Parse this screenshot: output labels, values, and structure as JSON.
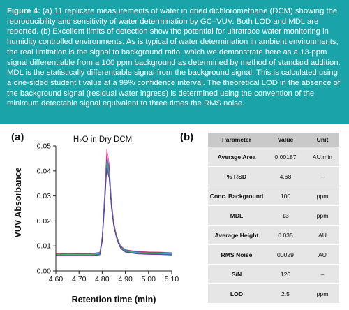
{
  "caption": {
    "label": "Figure 4:",
    "text": "(a) 11 replicate measurements of water in dried dichloromethane (DCM) showing the reproducibility and sensitivity of water determination by GC–VUV. Both LOD and MDL are reported. (b) Excellent limits of detection show the potential for ultratrace water monitoring in humidity controlled environments. As is typical of water determination in ambient environments, the real limitation is the signal to background ratio, which we demonstrate here as a 13-ppm signal differentiable from a 100 ppm background as determined by method of standard addition. MDL is the statistically differentiable signal from the background signal. This is calculated using a one-sided student t value at a 99% confidence interval. The theoretical LOD in the absence of the background signal (residual water ingress) is determined using the convention of the minimum detectable signal equivalent to three times the RMS noise."
  },
  "panel_a_label": "(a)",
  "panel_b_label": "(b)",
  "colors": {
    "caption_bg": "#1aa3a8",
    "table_header_bg": "#c9c9c9",
    "table_row_bg": "#e6e6e6",
    "series": [
      "#e0409a",
      "#c2185b",
      "#3f51b5",
      "#1e88e5",
      "#26a69a",
      "#4caf50",
      "#8bc34a",
      "#00897b",
      "#5c6bc0",
      "#0097a7",
      "#7b1fa2"
    ]
  },
  "chart_data": {
    "type": "line",
    "title": "H₂O in Dry DCM",
    "xlabel": "Retention time (min)",
    "ylabel": "VUV Absorbance",
    "xlim": [
      4.6,
      5.1
    ],
    "ylim": [
      0.0,
      0.05
    ],
    "xticks": [
      "4.60",
      "4.70",
      "4.80",
      "4.90",
      "5.00",
      "5.10"
    ],
    "yticks": [
      "0.00",
      "0.01",
      "0.02",
      "0.03",
      "0.04",
      "0.05"
    ],
    "grid": false,
    "replicates": 11,
    "x": [
      4.6,
      4.65,
      4.7,
      4.75,
      4.79,
      4.8,
      4.81,
      4.82,
      4.83,
      4.84,
      4.85,
      4.86,
      4.87,
      4.88,
      4.9,
      4.95,
      5.0,
      5.05,
      5.1
    ],
    "series": [
      {
        "values": [
          0.0071,
          0.0069,
          0.007,
          0.0069,
          0.0075,
          0.014,
          0.03,
          0.0488,
          0.043,
          0.028,
          0.0195,
          0.015,
          0.012,
          0.01,
          0.0085,
          0.0078,
          0.0076,
          0.0075,
          0.0073
        ]
      },
      {
        "values": [
          0.007,
          0.0068,
          0.0069,
          0.0068,
          0.0073,
          0.0135,
          0.029,
          0.0462,
          0.0415,
          0.0272,
          0.019,
          0.0148,
          0.0118,
          0.0098,
          0.0084,
          0.0077,
          0.0075,
          0.0074,
          0.0072
        ]
      },
      {
        "values": [
          0.0069,
          0.0067,
          0.0068,
          0.0068,
          0.0072,
          0.0132,
          0.0285,
          0.0448,
          0.0405,
          0.0268,
          0.0188,
          0.0146,
          0.0117,
          0.0097,
          0.0083,
          0.0076,
          0.0074,
          0.0073,
          0.0071
        ]
      },
      {
        "values": [
          0.0068,
          0.0067,
          0.0067,
          0.0067,
          0.0071,
          0.013,
          0.028,
          0.044,
          0.0398,
          0.0264,
          0.0186,
          0.0145,
          0.0116,
          0.0096,
          0.0082,
          0.0075,
          0.0073,
          0.0072,
          0.007
        ]
      },
      {
        "values": [
          0.0067,
          0.0066,
          0.0066,
          0.0066,
          0.007,
          0.0128,
          0.0276,
          0.0436,
          0.0394,
          0.0262,
          0.0185,
          0.0144,
          0.0115,
          0.0095,
          0.0081,
          0.0074,
          0.0072,
          0.0071,
          0.0069
        ]
      },
      {
        "values": [
          0.0066,
          0.0065,
          0.0065,
          0.0065,
          0.0069,
          0.0126,
          0.0272,
          0.0432,
          0.039,
          0.026,
          0.0184,
          0.0143,
          0.0114,
          0.0094,
          0.008,
          0.0073,
          0.0071,
          0.007,
          0.0068
        ]
      },
      {
        "values": [
          0.0065,
          0.0064,
          0.0064,
          0.0064,
          0.0068,
          0.0124,
          0.0268,
          0.0428,
          0.0386,
          0.0258,
          0.0183,
          0.0142,
          0.0113,
          0.0093,
          0.0079,
          0.0072,
          0.007,
          0.0069,
          0.0067
        ]
      },
      {
        "values": [
          0.0064,
          0.0063,
          0.0063,
          0.0063,
          0.0067,
          0.0122,
          0.0264,
          0.0424,
          0.0382,
          0.0256,
          0.0182,
          0.0141,
          0.0112,
          0.0092,
          0.0078,
          0.0071,
          0.0069,
          0.0068,
          0.0066
        ]
      },
      {
        "values": [
          0.0063,
          0.0062,
          0.0062,
          0.0062,
          0.0066,
          0.012,
          0.026,
          0.042,
          0.0378,
          0.0254,
          0.0181,
          0.014,
          0.0111,
          0.0091,
          0.0077,
          0.007,
          0.0068,
          0.0067,
          0.0065
        ]
      },
      {
        "values": [
          0.0062,
          0.0061,
          0.0061,
          0.0061,
          0.0065,
          0.0118,
          0.0256,
          0.0416,
          0.0374,
          0.0252,
          0.018,
          0.0139,
          0.011,
          0.009,
          0.0076,
          0.0069,
          0.0067,
          0.0066,
          0.0064
        ]
      },
      {
        "values": [
          0.0061,
          0.006,
          0.006,
          0.006,
          0.0064,
          0.0116,
          0.0252,
          0.0412,
          0.037,
          0.025,
          0.0179,
          0.0138,
          0.0109,
          0.0089,
          0.0075,
          0.0068,
          0.0066,
          0.0065,
          0.0063
        ]
      }
    ]
  },
  "table": {
    "headers": [
      "Parameter",
      "Value",
      "Unit"
    ],
    "rows": [
      [
        "Average Area",
        "0.00187",
        "AU.min"
      ],
      [
        "% RSD",
        "4.68",
        "–"
      ],
      [
        "Conc. Background",
        "100",
        "ppm"
      ],
      [
        "MDL",
        "13",
        "ppm"
      ],
      [
        "Average Height",
        "0.035",
        "AU"
      ],
      [
        "RMS Noise",
        "00029",
        "AU"
      ],
      [
        "S/N",
        "120",
        "–"
      ],
      [
        "LOD",
        "2.5",
        "ppm"
      ]
    ]
  }
}
